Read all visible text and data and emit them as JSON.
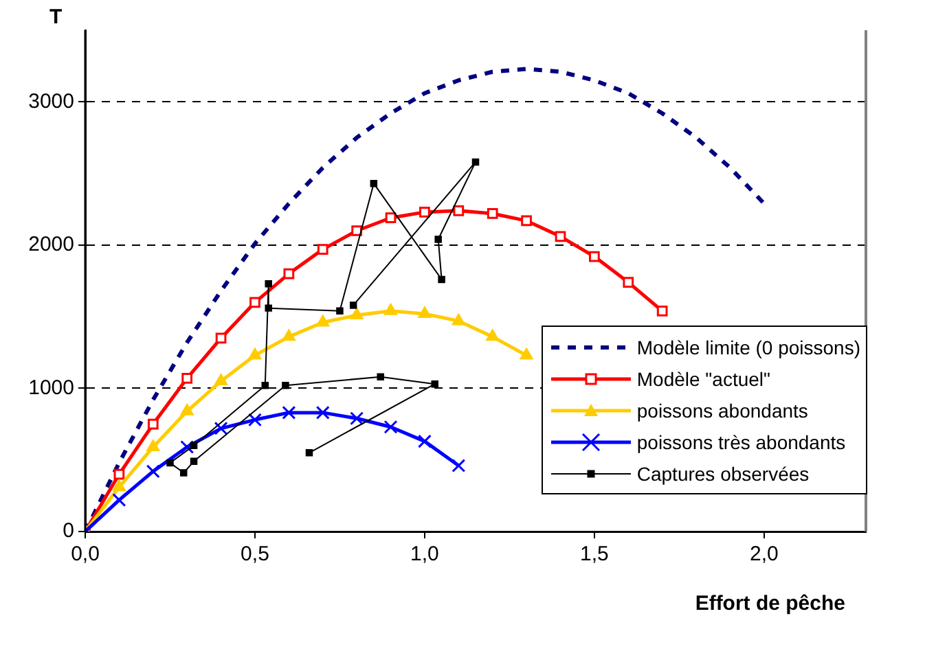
{
  "chart_data": {
    "type": "line",
    "xlabel": "Effort de pêche",
    "ylabel": "T",
    "xlim": [
      0,
      2.3
    ],
    "xticks": [
      {
        "value": 0,
        "label": "0,0"
      },
      {
        "value": 0.5,
        "label": "0,5"
      },
      {
        "value": 1,
        "label": "1,0"
      },
      {
        "value": 1.5,
        "label": "1,5"
      },
      {
        "value": 2,
        "label": "2,0"
      }
    ],
    "ylim": [
      0,
      3500
    ],
    "yticks": [
      0,
      1000,
      2000,
      3000
    ],
    "grid": "y",
    "legend": "bottom right",
    "series": [
      {
        "name": "Modèle limite (0 poissons)",
        "color": "#000080",
        "line_style": "dashed",
        "marker": "none",
        "x": [
          0,
          0.1,
          0.2,
          0.3,
          0.4,
          0.5,
          0.6,
          0.7,
          0.8,
          0.9,
          1.0,
          1.1,
          1.2,
          1.3,
          1.4,
          1.5,
          1.6,
          1.7,
          1.8,
          1.9,
          2.0
        ],
        "values": [
          0,
          480,
          920,
          1320,
          1680,
          2010,
          2290,
          2540,
          2750,
          2920,
          3060,
          3150,
          3210,
          3230,
          3210,
          3150,
          3060,
          2920,
          2750,
          2540,
          2290
        ]
      },
      {
        "name": "Modèle \"actuel\"",
        "color": "#ff0000",
        "line_style": "solid",
        "marker": "square",
        "x": [
          0,
          0.1,
          0.2,
          0.3,
          0.4,
          0.5,
          0.6,
          0.7,
          0.8,
          0.9,
          1.0,
          1.1,
          1.2,
          1.3,
          1.4,
          1.5,
          1.6,
          1.7
        ],
        "values": [
          0,
          400,
          750,
          1070,
          1350,
          1600,
          1800,
          1970,
          2100,
          2190,
          2230,
          2240,
          2220,
          2170,
          2060,
          1920,
          1740,
          1540
        ]
      },
      {
        "name": "poissons abondants",
        "color": "#ffcc00",
        "line_style": "solid",
        "marker": "triangle",
        "x": [
          0,
          0.1,
          0.2,
          0.3,
          0.4,
          0.5,
          0.6,
          0.7,
          0.8,
          0.9,
          1.0,
          1.1,
          1.2,
          1.3
        ],
        "values": [
          0,
          310,
          590,
          840,
          1050,
          1230,
          1360,
          1460,
          1510,
          1540,
          1520,
          1470,
          1360,
          1230
        ]
      },
      {
        "name": "poissons très abondants",
        "color": "#0000ff",
        "line_style": "solid",
        "marker": "cross",
        "x": [
          0,
          0.1,
          0.2,
          0.3,
          0.4,
          0.5,
          0.6,
          0.7,
          0.8,
          0.9,
          1.0,
          1.1
        ],
        "values": [
          0,
          220,
          420,
          590,
          720,
          780,
          830,
          830,
          790,
          730,
          630,
          460
        ]
      },
      {
        "name": "Captures observées",
        "color": "#000000",
        "line_style": "solid",
        "marker": "square",
        "x": [
          0.66,
          1.03,
          0.87,
          0.59,
          0.32,
          0.29,
          0.25,
          0.32,
          0.53,
          0.54,
          0.54,
          0.75,
          0.85,
          1.05,
          1.04,
          1.15,
          0.79
        ],
        "values": [
          550,
          1030,
          1080,
          1020,
          490,
          410,
          480,
          600,
          1020,
          1730,
          1560,
          1540,
          2430,
          1760,
          2040,
          2580,
          1580
        ]
      }
    ]
  }
}
